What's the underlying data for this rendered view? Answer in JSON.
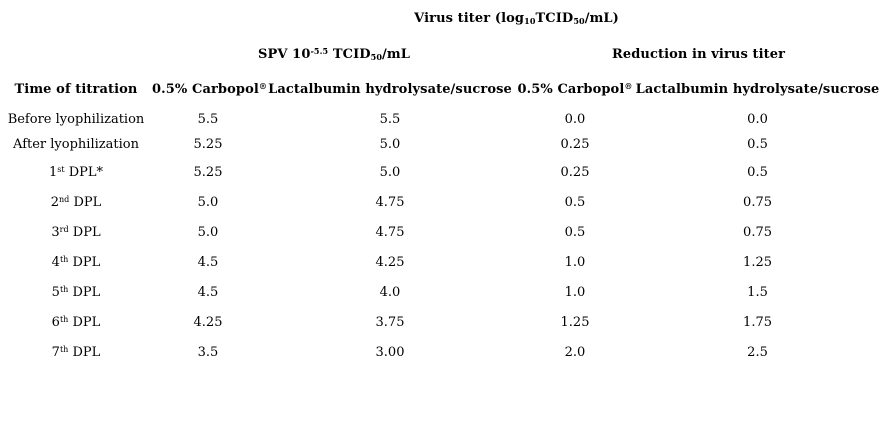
{
  "page": {
    "background_color": "#ffffff",
    "text_color": "#000000"
  },
  "table": {
    "title_segments": [
      {
        "t": "Virus titer (log"
      },
      {
        "t": "10",
        "style": "sub"
      },
      {
        "t": "TCID"
      },
      {
        "t": "50",
        "style": "sub"
      },
      {
        "t": "/mL)"
      }
    ],
    "group_headers": [
      {
        "id": "spv-titer",
        "segments": [
          {
            "t": "SPV 10"
          },
          {
            "t": "-5.5",
            "style": "sup"
          },
          {
            "t": " TCID"
          },
          {
            "t": "50",
            "style": "sub"
          },
          {
            "t": "/mL"
          }
        ]
      },
      {
        "id": "reduction",
        "segments": [
          {
            "t": "Reduction in virus titer"
          }
        ]
      }
    ],
    "column_headers": [
      {
        "id": "time-of-titration",
        "segments": [
          {
            "t": "Time of titration"
          }
        ]
      },
      {
        "id": "carbopol-titer",
        "segments": [
          {
            "t": "0.5% Carbopol"
          },
          {
            "t": "®",
            "style": "sup"
          }
        ]
      },
      {
        "id": "lactalbumin-titer",
        "segments": [
          {
            "t": "Lactalbumin hydrolysate/sucrose"
          }
        ]
      },
      {
        "id": "carbopol-reduction",
        "segments": [
          {
            "t": "0.5% Carbopol"
          },
          {
            "t": "®",
            "style": "sup"
          }
        ]
      },
      {
        "id": "lactalbumin-reduction",
        "segments": [
          {
            "t": "Lactalbumin hydrolysate/sucrose"
          }
        ]
      }
    ],
    "rows": [
      {
        "label": [
          {
            "t": "Before lyophilization"
          }
        ],
        "values": [
          "5.5",
          "5.5",
          "0.0",
          "0.0"
        ]
      },
      {
        "label": [
          {
            "t": "After lyophilization"
          }
        ],
        "values": [
          "5.25",
          "5.0",
          "0.25",
          "0.5"
        ]
      },
      {
        "label": [
          {
            "t": "1"
          },
          {
            "t": "st",
            "style": "sup"
          },
          {
            "t": " DPL*"
          }
        ],
        "values": [
          "5.25",
          "5.0",
          "0.25",
          "0.5"
        ]
      },
      {
        "label": [
          {
            "t": "2"
          },
          {
            "t": "nd",
            "style": "sup"
          },
          {
            "t": " DPL"
          }
        ],
        "values": [
          "5.0",
          "4.75",
          "0.5",
          "0.75"
        ]
      },
      {
        "label": [
          {
            "t": "3"
          },
          {
            "t": "rd",
            "style": "sup"
          },
          {
            "t": " DPL"
          }
        ],
        "values": [
          "5.0",
          "4.75",
          "0.5",
          "0.75"
        ]
      },
      {
        "label": [
          {
            "t": "4"
          },
          {
            "t": "th",
            "style": "sup"
          },
          {
            "t": " DPL"
          }
        ],
        "values": [
          "4.5",
          "4.25",
          "1.0",
          "1.25"
        ]
      },
      {
        "label": [
          {
            "t": "5"
          },
          {
            "t": "th",
            "style": "sup"
          },
          {
            "t": " DPL"
          }
        ],
        "values": [
          "4.5",
          "4.0",
          "1.0",
          "1.5"
        ]
      },
      {
        "label": [
          {
            "t": "6"
          },
          {
            "t": "th",
            "style": "sup"
          },
          {
            "t": " DPL"
          }
        ],
        "values": [
          "4.25",
          "3.75",
          "1.25",
          "1.75"
        ]
      },
      {
        "label": [
          {
            "t": "7"
          },
          {
            "t": "th",
            "style": "sup"
          },
          {
            "t": " DPL"
          }
        ],
        "values": [
          "3.5",
          "3.00",
          "2.0",
          "2.5"
        ]
      }
    ]
  },
  "chart_data": {
    "type": "table",
    "title": "Virus titer (log10TCID50/mL)",
    "group_columns": [
      "SPV 10^-5.5 TCID50/mL",
      "Reduction in virus titer"
    ],
    "columns": [
      "Time of titration",
      "0.5% Carbopol(R) titer",
      "Lactalbumin hydrolysate/sucrose titer",
      "0.5% Carbopol(R) reduction",
      "Lactalbumin hydrolysate/sucrose reduction"
    ],
    "rows": [
      [
        "Before lyophilization",
        5.5,
        5.5,
        0.0,
        0.0
      ],
      [
        "After lyophilization",
        5.25,
        5.0,
        0.25,
        0.5
      ],
      [
        "1st DPL*",
        5.25,
        5.0,
        0.25,
        0.5
      ],
      [
        "2nd DPL",
        5.0,
        4.75,
        0.5,
        0.75
      ],
      [
        "3rd DPL",
        5.0,
        4.75,
        0.5,
        0.75
      ],
      [
        "4th DPL",
        4.5,
        4.25,
        1.0,
        1.25
      ],
      [
        "5th DPL",
        4.5,
        4.0,
        1.0,
        1.5
      ],
      [
        "6th DPL",
        4.25,
        3.75,
        1.25,
        1.75
      ],
      [
        "7th DPL",
        3.5,
        3.0,
        2.0,
        2.5
      ]
    ]
  }
}
